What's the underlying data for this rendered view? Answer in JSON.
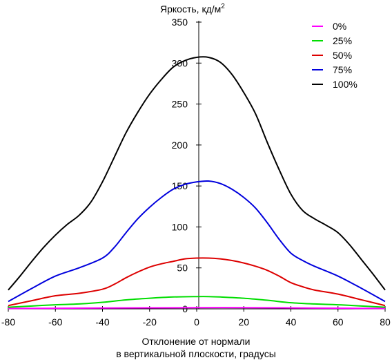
{
  "chart_data": {
    "type": "line",
    "title": "",
    "ylabel": "Яркость, кд/м",
    "ylabel_superscript": "2",
    "xlabel_line1": "Отклонение от нормали",
    "xlabel_line2": "в вертикальной плоскости, градусы",
    "xlim": [
      -80,
      80
    ],
    "ylim": [
      0,
      350
    ],
    "xticks": [
      -80,
      -60,
      -40,
      -20,
      0,
      20,
      40,
      60,
      80
    ],
    "yticks": [
      0,
      50,
      100,
      150,
      200,
      250,
      300,
      350
    ],
    "grid": false,
    "legend_position": "top-right",
    "series": [
      {
        "name": "0%",
        "color": "#ff00ff",
        "x": [
          -80,
          -60,
          -40,
          -20,
          0,
          20,
          40,
          60,
          80
        ],
        "y": [
          0.5,
          0.7,
          1,
          1.3,
          1.5,
          1.5,
          1.2,
          0.8,
          0.5
        ]
      },
      {
        "name": "25%",
        "color": "#00dd00",
        "x": [
          -80,
          -70,
          -60,
          -50,
          -40,
          -30,
          -20,
          -10,
          0,
          5,
          10,
          20,
          30,
          40,
          50,
          60,
          70,
          80
        ],
        "y": [
          2,
          3.5,
          5,
          6,
          8,
          11,
          13,
          14.5,
          15,
          15,
          14.5,
          13,
          10.5,
          7.5,
          6,
          5,
          3.5,
          2
        ]
      },
      {
        "name": "50%",
        "color": "#dd0000",
        "x": [
          -80,
          -70,
          -60,
          -50,
          -40,
          -35,
          -30,
          -25,
          -20,
          -15,
          -10,
          -5,
          0,
          5,
          10,
          15,
          20,
          25,
          30,
          35,
          40,
          45,
          50,
          60,
          70,
          80
        ],
        "y": [
          4,
          10,
          16,
          19,
          24,
          30,
          38,
          45,
          51,
          55,
          58,
          61,
          62,
          62,
          61,
          59,
          56,
          52,
          47,
          40,
          32,
          27,
          23,
          18,
          11,
          4
        ]
      },
      {
        "name": "75%",
        "color": "#0000dd",
        "x": [
          -80,
          -70,
          -60,
          -50,
          -40,
          -35,
          -30,
          -25,
          -20,
          -15,
          -10,
          -5,
          0,
          5,
          10,
          15,
          20,
          25,
          30,
          35,
          40,
          45,
          50,
          60,
          70,
          80
        ],
        "y": [
          9,
          25,
          40,
          50,
          62,
          75,
          93,
          110,
          124,
          136,
          146,
          152,
          155,
          156,
          153,
          146,
          136,
          123,
          105,
          85,
          68,
          59,
          52,
          40,
          25,
          9
        ]
      },
      {
        "name": "100%",
        "color": "#000000",
        "x": [
          -80,
          -75,
          -70,
          -65,
          -60,
          -55,
          -50,
          -45,
          -40,
          -35,
          -30,
          -25,
          -20,
          -15,
          -10,
          -5,
          0,
          5,
          10,
          15,
          20,
          25,
          30,
          35,
          40,
          45,
          50,
          55,
          60,
          65,
          70,
          75,
          80
        ],
        "y": [
          23,
          40,
          58,
          75,
          90,
          103,
          114,
          130,
          155,
          185,
          215,
          240,
          262,
          280,
          295,
          303,
          307,
          307,
          301,
          286,
          264,
          238,
          203,
          170,
          140,
          120,
          110,
          102,
          93,
          78,
          60,
          42,
          23
        ]
      }
    ]
  }
}
